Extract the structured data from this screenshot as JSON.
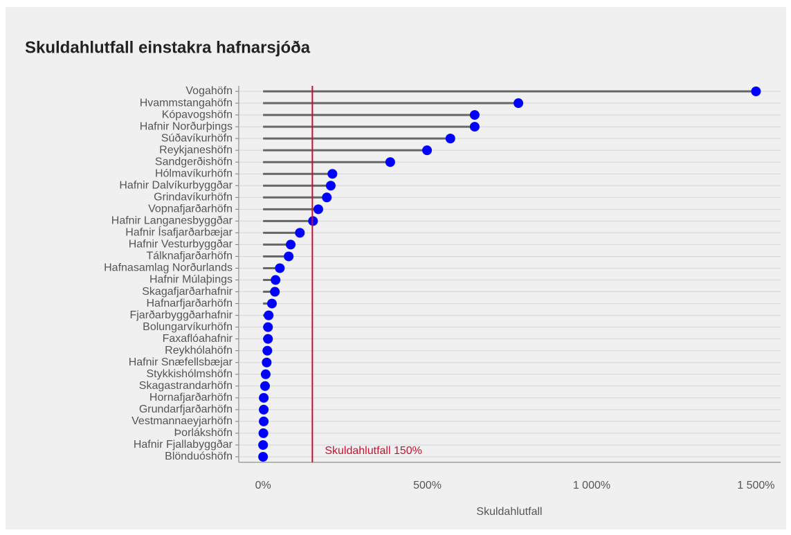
{
  "chart_data": {
    "type": "lollipop",
    "title": "Skuldahlutfall einstakra hafnarsjóða",
    "x_label": "Skuldahlutfall",
    "categories": [
      "Vogahöfn",
      "Hvammstangahöfn",
      "Kópavogshöfn",
      "Hafnir Norðurþings",
      "Súðavíkurhöfn",
      "Reykjaneshöfn",
      "Sandgerðishöfn",
      "Hólmavíkurhöfn",
      "Hafnir Dalvíkurbyggðar",
      "Grindavíkurhöfn",
      "Vopnafjarðarhöfn",
      "Hafnir Langanesbyggðar",
      "Hafnir Ísafjarðarbæjar",
      "Hafnir Vesturbyggðar",
      "Tálknafjarðarhöfn",
      "Hafnasamlag Norðurlands",
      "Hafnir Múlaþings",
      "Skagafjarðarhafnir",
      "Hafnarfjarðarhöfn",
      "Fjarðarbyggðarhafnir",
      "Bolungarvíkurhöfn",
      "Faxaflóahafnir",
      "Reykhólahöfn",
      "Hafnir Snæfellsbæjar",
      "Stykkishólmshöfn",
      "Skagastrandarhöfn",
      "Hornafjarðarhöfn",
      "Grundarfjarðarhöfn",
      "Vestmannaeyjarhöfn",
      "Þorlákshöfn",
      "Hafnir Fjallabyggðar",
      "Blönduóshöfn"
    ],
    "values": [
      1500,
      777,
      644,
      644,
      570,
      499,
      387,
      211,
      206,
      194,
      168,
      152,
      112,
      84,
      78,
      51,
      38,
      36,
      27,
      17,
      15,
      15,
      13,
      11,
      8,
      6,
      2,
      2,
      2,
      1,
      0,
      0
    ],
    "color": "#0000ff",
    "stem_color": "#666666",
    "xlim": [
      -74,
      1575
    ],
    "xticks": [
      {
        "value": 0,
        "label": "0%"
      },
      {
        "value": 500,
        "label": "500%"
      },
      {
        "value": 1000,
        "label": "1 000%"
      },
      {
        "value": 1500,
        "label": "1 500%"
      }
    ],
    "reference_line": {
      "value": 150,
      "label": "Skuldahlutfall 150%",
      "color": "#c8102e"
    },
    "grid": true
  }
}
